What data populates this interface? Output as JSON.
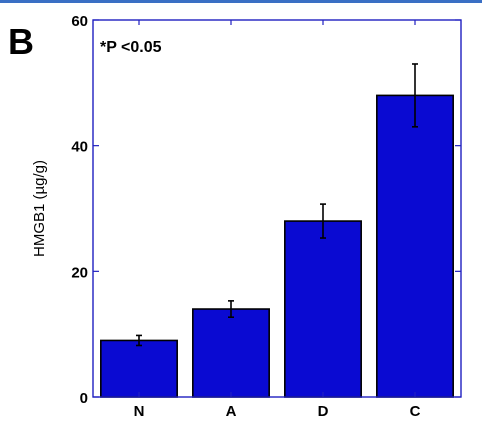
{
  "panel_label": "B",
  "chart_data": {
    "type": "bar",
    "categories": [
      "N",
      "A",
      "D",
      "C"
    ],
    "values": [
      9,
      14,
      28,
      48
    ],
    "errors": [
      0.8,
      1.3,
      2.7,
      5
    ],
    "ylabel": "HMGB1 (µg/g)",
    "ylim": [
      0,
      60
    ],
    "yticks": [
      0,
      20,
      40,
      60
    ],
    "annotation": "*P <0.05",
    "bar_color": "#0a0ad2",
    "axis_color": "#2020c0",
    "grid": false,
    "legend": "none"
  }
}
